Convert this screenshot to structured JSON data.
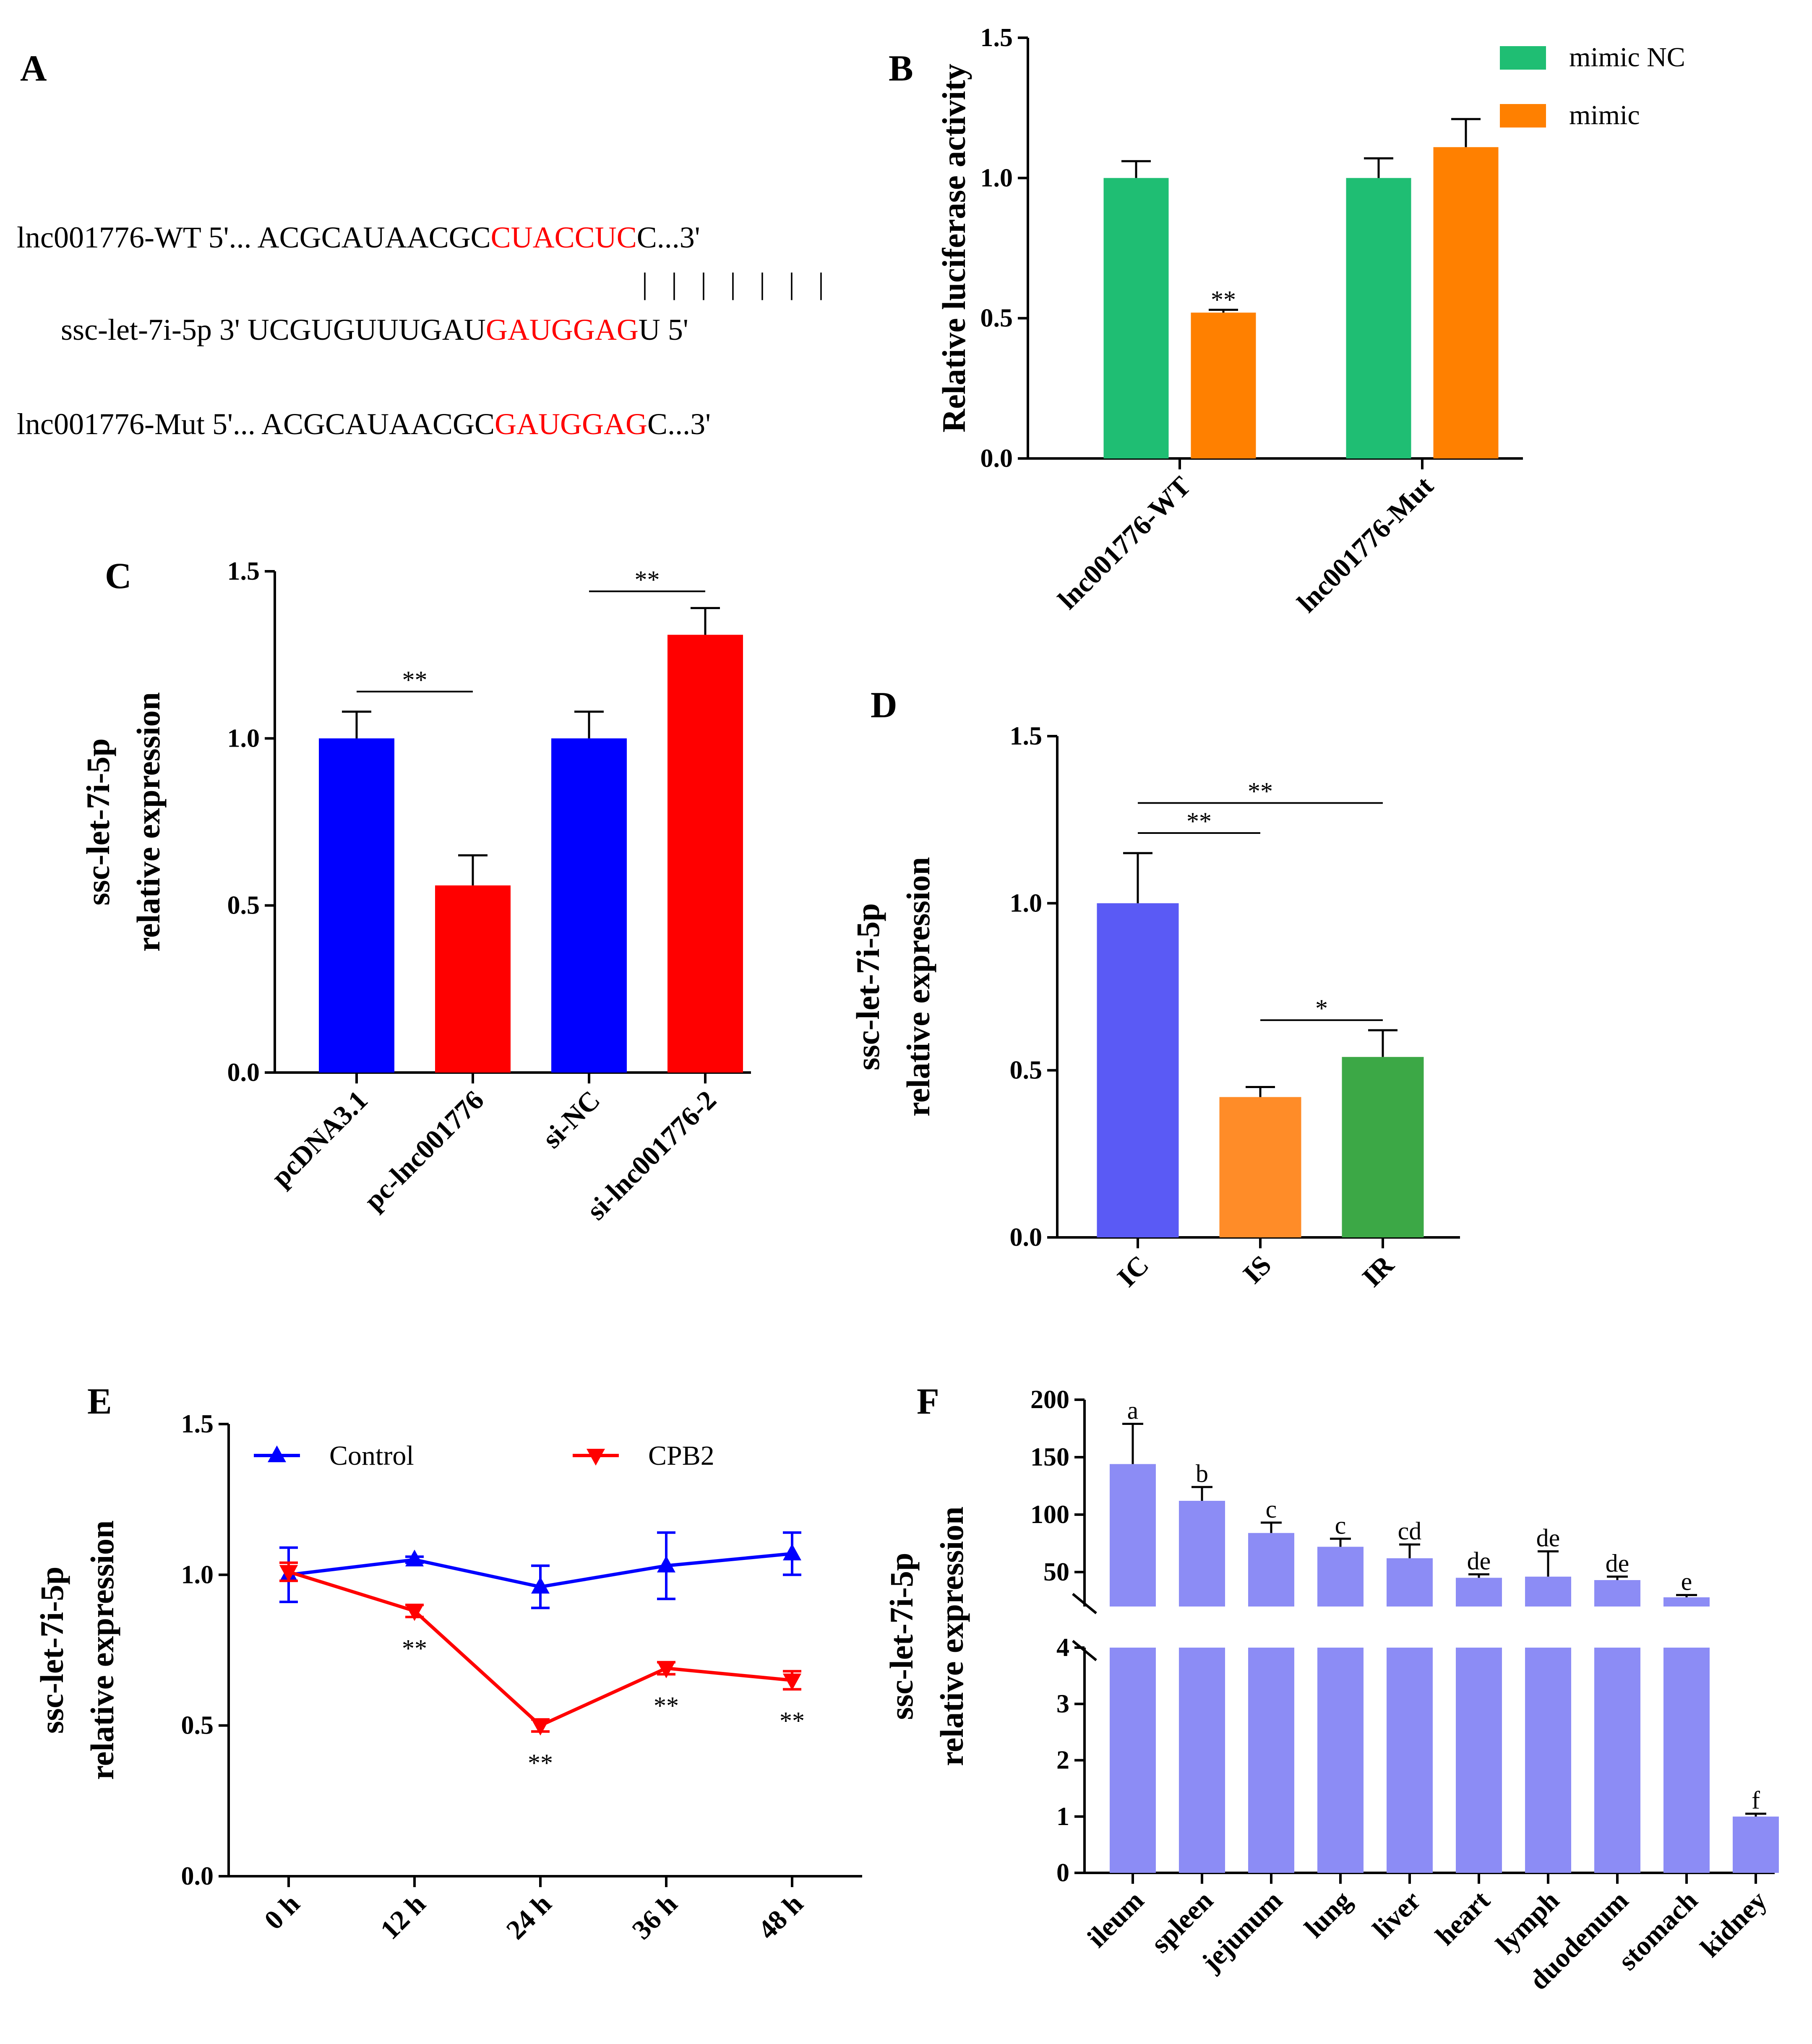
{
  "chart_data": [
    {
      "panel": "A",
      "type": "table",
      "rows": [
        {
          "name": "lnc001776-WT",
          "end5": "5'...",
          "seq": "ACGCAUAACGC",
          "highlight": "CUACCUC",
          "tail": "C",
          "end3": "...3'"
        },
        {
          "name": "ssc-let-7i-5p",
          "end5": "3'",
          "seq": "UCGUGUUUGAU",
          "highlight": "GAUGGAG",
          "tail": "U",
          "end3": "5'"
        },
        {
          "name": "lnc001776-Mut",
          "end5": "5'...",
          "seq": "ACGCAUAACGC",
          "highlight": "GAUGGAG",
          "tail": "C",
          "end3": "...3'"
        }
      ],
      "pair_mark": "|",
      "highlight_color": "#ff0000"
    },
    {
      "panel": "B",
      "type": "bar",
      "ylabel": "Relative luciferase activity",
      "ylim": [
        0,
        1.5
      ],
      "yticks": [
        "0.0",
        "0.5",
        "1.0",
        "1.5"
      ],
      "categories": [
        "lnc001776-WT",
        "lnc001776-Mut"
      ],
      "series": [
        {
          "name": "mimic NC",
          "color": "#1fbe73",
          "values": [
            1.0,
            1.0
          ],
          "errors": [
            0.06,
            0.07
          ]
        },
        {
          "name": "mimic",
          "color": "#ff8000",
          "values": [
            0.52,
            1.11
          ],
          "errors": [
            0.01,
            0.1
          ]
        }
      ],
      "annotations": [
        {
          "category": 0,
          "series": 1,
          "label": "**"
        }
      ]
    },
    {
      "panel": "C",
      "type": "bar",
      "ylabel": [
        "ssc-let-7i-5p",
        "relative expression"
      ],
      "ylim": [
        0,
        1.5
      ],
      "yticks": [
        "0.0",
        "0.5",
        "1.0",
        "1.5"
      ],
      "categories": [
        "pcDNA3.1",
        "pc-lnc001776",
        "si-NC",
        "si-lnc001776-2"
      ],
      "values": [
        1.0,
        0.56,
        1.0,
        1.31
      ],
      "errors": [
        0.08,
        0.09,
        0.08,
        0.08
      ],
      "colors": [
        "#0000ff",
        "#ff0000",
        "#0000ff",
        "#ff0000"
      ],
      "brackets": [
        {
          "from": 0,
          "to": 1,
          "y": 1.14,
          "label": "**"
        },
        {
          "from": 2,
          "to": 3,
          "y": 1.44,
          "label": "**"
        }
      ]
    },
    {
      "panel": "D",
      "type": "bar",
      "ylabel": [
        "ssc-let-7i-5p",
        "relative expression"
      ],
      "ylim": [
        0,
        1.5
      ],
      "yticks": [
        "0.0",
        "0.5",
        "1.0",
        "1.5"
      ],
      "categories": [
        "IC",
        "IS",
        "IR"
      ],
      "values": [
        1.0,
        0.42,
        0.54
      ],
      "errors": [
        0.15,
        0.03,
        0.08
      ],
      "colors": [
        "#5a5af5",
        "#ff8c28",
        "#3ca846"
      ],
      "brackets": [
        {
          "from": 0,
          "to": 2,
          "y": 1.3,
          "label": "**"
        },
        {
          "from": 0,
          "to": 1,
          "y": 1.21,
          "label": "**"
        },
        {
          "from": 1,
          "to": 2,
          "y": 0.65,
          "label": "*"
        }
      ]
    },
    {
      "panel": "E",
      "type": "line",
      "ylabel": [
        "ssc-let-7i-5p",
        "relative expression"
      ],
      "ylim": [
        0,
        1.5
      ],
      "yticks": [
        "0.0",
        "0.5",
        "1.0",
        "1.5"
      ],
      "x": [
        "0 h",
        "12 h",
        "24 h",
        "36 h",
        "48 h"
      ],
      "series": [
        {
          "name": "Control",
          "color": "#0000ff",
          "marker": "triangle-up",
          "values": [
            1.0,
            1.05,
            0.96,
            1.03,
            1.07
          ],
          "errors": [
            0.09,
            0.01,
            0.07,
            0.11,
            0.07
          ]
        },
        {
          "name": "CPB2",
          "color": "#ff0000",
          "marker": "triangle-down",
          "values": [
            1.01,
            0.88,
            0.5,
            0.69,
            0.65
          ],
          "errors": [
            0.03,
            0.02,
            0.02,
            0.02,
            0.03
          ]
        }
      ],
      "annotations": [
        {
          "x": 1,
          "label": "**"
        },
        {
          "x": 2,
          "label": "**"
        },
        {
          "x": 3,
          "label": "**"
        },
        {
          "x": 4,
          "label": "**"
        }
      ]
    },
    {
      "panel": "F",
      "type": "bar",
      "ylabel": [
        "ssc-let-7i-5p",
        "relative expression"
      ],
      "axis_break": true,
      "lower_ylim": [
        0,
        4
      ],
      "upper_ylim": [
        20,
        200
      ],
      "yticks_lower": [
        "0",
        "1",
        "2",
        "3",
        "4"
      ],
      "yticks_upper": [
        "50",
        "100",
        "150",
        "200"
      ],
      "categories": [
        "ileum",
        "spleen",
        "jejunum",
        "lung",
        "liver",
        "heart",
        "lymph",
        "duodenum",
        "stomach",
        "kidney"
      ],
      "values": [
        144,
        112,
        84,
        72,
        62,
        45,
        46,
        43,
        28,
        1.0
      ],
      "errors": [
        35,
        12,
        9,
        7,
        12,
        3,
        22,
        3,
        2,
        0.05
      ],
      "letters": [
        "a",
        "b",
        "c",
        "c",
        "cd",
        "de",
        "de",
        "de",
        "e",
        "f"
      ],
      "color": "#8c8cf5"
    }
  ]
}
